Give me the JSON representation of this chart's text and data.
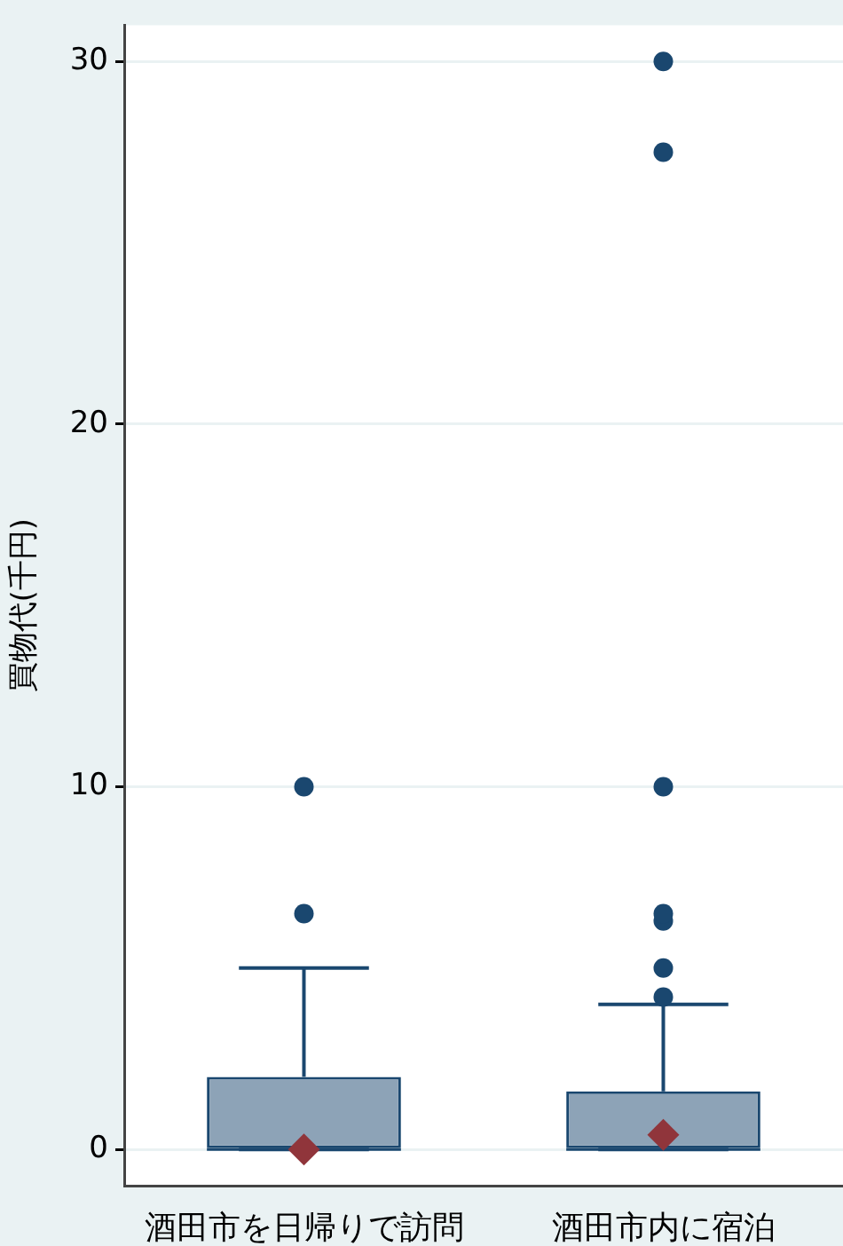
{
  "chart_data": {
    "type": "box",
    "ylabel": "買物代(千円)",
    "categories": [
      "酒田市を日帰りで訪問",
      "酒田市内に宿泊"
    ],
    "series": [
      {
        "color": "#1a476f",
        "boxes": [
          {
            "low": 0,
            "q1": 0,
            "median": 0,
            "q3": 2,
            "high": 5,
            "mean": 0,
            "outliers": [
              6.5,
              10
            ]
          },
          {
            "low": 0,
            "q1": 0,
            "median": 0,
            "q3": 1.6,
            "high": 4,
            "mean": 0.4,
            "outliers": [
              4.2,
              5,
              6.3,
              6.5,
              10,
              27.5,
              30
            ]
          }
        ]
      }
    ],
    "ylim": [
      -1,
      31
    ],
    "yticks": [
      0,
      10,
      20,
      30
    ],
    "grid": "y"
  }
}
